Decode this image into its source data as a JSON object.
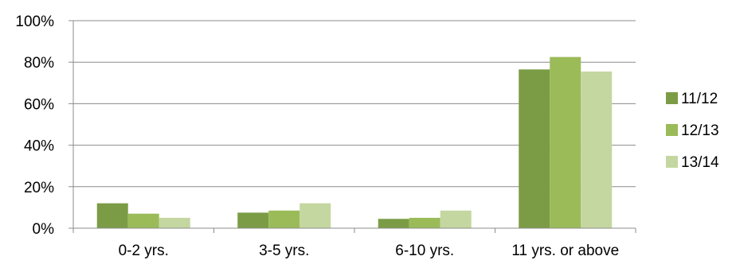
{
  "chart_data": {
    "type": "bar",
    "categories": [
      "0-2 yrs.",
      "3-5 yrs.",
      "6-10 yrs.",
      "11 yrs. or above"
    ],
    "series": [
      {
        "name": "11/12",
        "color": "#7b9c45",
        "values": [
          12,
          7.5,
          4.5,
          76.5
        ]
      },
      {
        "name": "12/13",
        "color": "#9bbb59",
        "values": [
          7,
          8.5,
          5,
          82.5
        ]
      },
      {
        "name": "13/14",
        "color": "#c4d7a0",
        "values": [
          5,
          12,
          8.5,
          75.5
        ]
      }
    ],
    "y_ticks": [
      "0%",
      "20%",
      "40%",
      "60%",
      "80%",
      "100%"
    ],
    "ylim": [
      0,
      100
    ],
    "grid": true,
    "legend_position": "right"
  }
}
